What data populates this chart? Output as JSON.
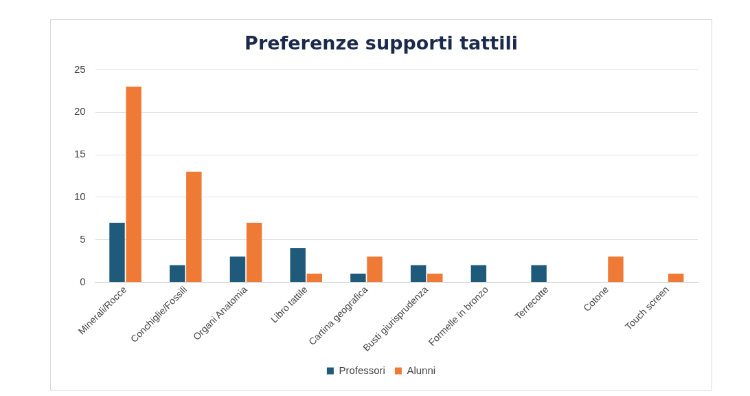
{
  "chart_data": {
    "type": "bar",
    "title": "Preferenze supporti tattili",
    "categories": [
      "Minerali/Rocce",
      "Conchiglie/Fossili",
      "Organi Anatomia",
      "Libro tattile",
      "Cartina geografica",
      "Busti giurisprudenza",
      "Formelle in bronzo",
      "Terrecotte",
      "Cotone",
      "Touch screen"
    ],
    "series": [
      {
        "name": "Professori",
        "color": "#1f5a7a",
        "values": [
          7,
          2,
          3,
          4,
          1,
          2,
          2,
          2,
          0,
          0
        ]
      },
      {
        "name": "Alunni",
        "color": "#ef7a35",
        "values": [
          23,
          13,
          7,
          1,
          3,
          1,
          0,
          0,
          3,
          1
        ]
      }
    ],
    "ylim": [
      0,
      25
    ],
    "yticks": [
      0,
      5,
      10,
      15,
      20,
      25
    ],
    "grid": "y",
    "legend": "bottom"
  }
}
